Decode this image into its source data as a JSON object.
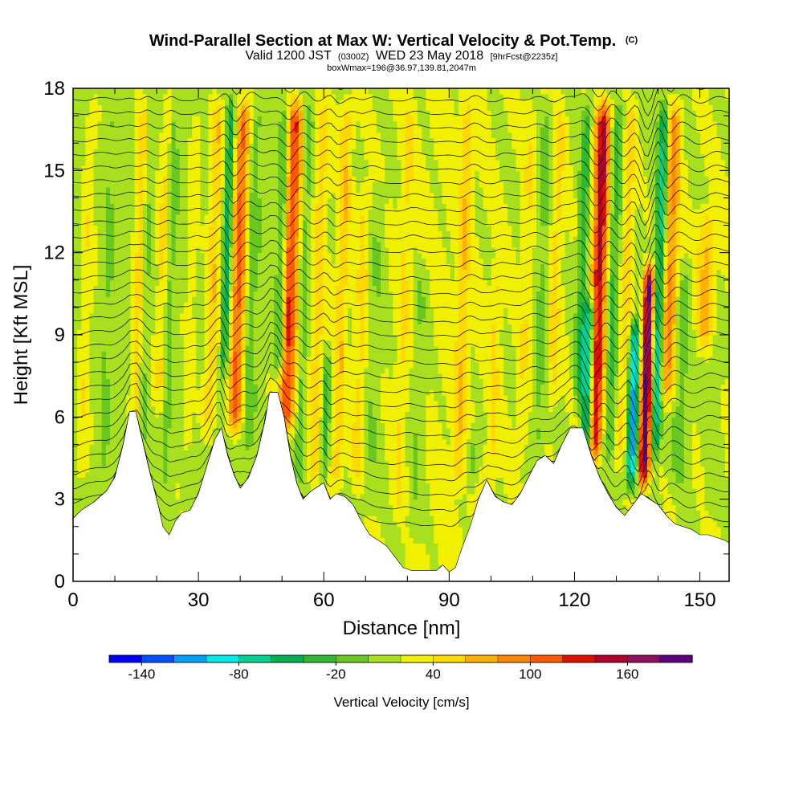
{
  "title": {
    "main": "Wind-Parallel Section at Max W: Vertical Velocity & Pot.Temp.",
    "main_suffix": "(C)",
    "line2_a": "Valid 1200 JST",
    "line2_b": "(0300Z)",
    "line2_c": "WED 23 May 2018",
    "line2_d": "[9hrFcst@2235z]",
    "line3": "boxWmax=196@36.97,139.81,2047m"
  },
  "colors": {
    "terrain": "#ffffff",
    "contour": "#000000",
    "background": "#ffffff"
  },
  "chart_data": {
    "type": "heatmap",
    "xlabel": "Distance [nm]",
    "ylabel": "Height [Kft MSL]",
    "xlim": [
      0,
      157
    ],
    "ylim": [
      0,
      18
    ],
    "xticks": [
      0,
      30,
      60,
      90,
      120,
      150
    ],
    "xtick_labels": [
      "0",
      "30",
      "60",
      "90",
      "120",
      "150"
    ],
    "yticks": [
      0,
      3,
      6,
      9,
      12,
      15,
      18
    ],
    "ytick_labels": [
      "0",
      "3",
      "6",
      "9",
      "12",
      "15",
      "18"
    ],
    "colorbar": {
      "label": "Vertical Velocity [cm/s]",
      "tick_values": [
        -140,
        -80,
        -20,
        40,
        100,
        160
      ],
      "tick_labels": [
        "-140",
        "-80",
        "-20",
        "40",
        "100",
        "160"
      ],
      "levels": [
        -140,
        -120,
        -100,
        -80,
        -60,
        -40,
        -20,
        0,
        20,
        40,
        60,
        80,
        100,
        120,
        140,
        160,
        180
      ],
      "colors": [
        "#0000ff",
        "#0050ff",
        "#00a0ff",
        "#00e8e8",
        "#00d090",
        "#00b050",
        "#30b830",
        "#68c820",
        "#a8e020",
        "#f0f000",
        "#ffd800",
        "#ffb000",
        "#ff8800",
        "#ff5800",
        "#e01000",
        "#b00030",
        "#901060",
        "#600080"
      ]
    },
    "terrain_kft": [
      [
        0,
        2.3
      ],
      [
        2,
        2.6
      ],
      [
        5,
        2.9
      ],
      [
        8,
        3.3
      ],
      [
        10,
        3.8
      ],
      [
        12,
        5.0
      ],
      [
        13.5,
        6.2
      ],
      [
        15,
        6.2
      ],
      [
        16.5,
        5.2
      ],
      [
        18,
        4.2
      ],
      [
        19.5,
        3.3
      ],
      [
        20.5,
        2.7
      ],
      [
        21.5,
        2.0
      ],
      [
        23,
        1.7
      ],
      [
        24.5,
        2.2
      ],
      [
        26,
        2.5
      ],
      [
        28,
        2.6
      ],
      [
        30,
        3.2
      ],
      [
        32,
        4.2
      ],
      [
        34,
        5.2
      ],
      [
        35.5,
        5.6
      ],
      [
        37,
        4.6
      ],
      [
        38.5,
        3.9
      ],
      [
        40,
        3.4
      ],
      [
        42,
        3.8
      ],
      [
        44,
        4.6
      ],
      [
        46,
        5.9
      ],
      [
        47,
        6.9
      ],
      [
        49,
        6.9
      ],
      [
        50.5,
        6.0
      ],
      [
        52,
        4.6
      ],
      [
        53.5,
        3.6
      ],
      [
        55,
        3.0
      ],
      [
        57,
        3.3
      ],
      [
        60,
        3.6
      ],
      [
        61.5,
        3.0
      ],
      [
        63,
        3.2
      ],
      [
        65,
        3.1
      ],
      [
        67,
        2.8
      ],
      [
        69,
        2.2
      ],
      [
        71,
        1.7
      ],
      [
        73,
        1.5
      ],
      [
        75,
        1.3
      ],
      [
        77,
        0.9
      ],
      [
        79,
        0.5
      ],
      [
        81,
        0.4
      ],
      [
        84,
        0.4
      ],
      [
        87,
        0.4
      ],
      [
        88.5,
        0.6
      ],
      [
        90,
        0.35
      ],
      [
        91.5,
        0.5
      ],
      [
        93,
        1.2
      ],
      [
        95,
        2.0
      ],
      [
        97,
        3.0
      ],
      [
        99,
        3.7
      ],
      [
        101,
        3.1
      ],
      [
        103,
        2.9
      ],
      [
        105,
        2.8
      ],
      [
        107,
        3.2
      ],
      [
        109,
        3.8
      ],
      [
        111,
        4.4
      ],
      [
        113,
        4.6
      ],
      [
        115,
        4.3
      ],
      [
        117,
        5.0
      ],
      [
        119,
        5.6
      ],
      [
        122,
        5.6
      ],
      [
        124,
        4.6
      ],
      [
        126,
        3.8
      ],
      [
        128,
        3.2
      ],
      [
        130,
        2.7
      ],
      [
        132,
        2.4
      ],
      [
        134,
        2.8
      ],
      [
        136,
        3.2
      ],
      [
        138,
        3.0
      ],
      [
        140,
        2.8
      ],
      [
        142,
        2.4
      ],
      [
        144,
        2.1
      ],
      [
        146,
        2.0
      ],
      [
        148,
        1.9
      ],
      [
        150,
        1.7
      ],
      [
        152,
        1.7
      ],
      [
        154,
        1.6
      ],
      [
        156,
        1.5
      ],
      [
        157,
        1.4
      ]
    ],
    "vertical_velocity_features": [
      {
        "x": 3,
        "width": 1.5,
        "w": 25,
        "z_lo": 3,
        "z_hi": 18
      },
      {
        "x": 8,
        "width": 1.2,
        "w": -15,
        "z_lo": 3,
        "z_hi": 18
      },
      {
        "x": 15.5,
        "width": 1.3,
        "w": 35,
        "z_lo": 4,
        "z_hi": 18
      },
      {
        "x": 17,
        "width": 1.0,
        "w": -22,
        "z_lo": 4,
        "z_hi": 18
      },
      {
        "x": 21,
        "width": 1.2,
        "w": 30,
        "z_lo": 6,
        "z_hi": 18
      },
      {
        "x": 23,
        "width": 1.2,
        "w": -25,
        "z_lo": 3,
        "z_hi": 18
      },
      {
        "x": 28,
        "width": 1.0,
        "w": 20,
        "z_lo": 4,
        "z_hi": 18
      },
      {
        "x": 33.2,
        "width": 1.5,
        "w": 45,
        "z_lo": 5,
        "z_hi": 18
      },
      {
        "x": 36.3,
        "width": 1.0,
        "w": -70,
        "z_lo": 7,
        "z_hi": 18
      },
      {
        "x": 39.3,
        "width": 1.7,
        "w": 95,
        "z_lo": 5,
        "z_hi": 18
      },
      {
        "x": 42.5,
        "width": 1.5,
        "w": -25,
        "z_lo": 4,
        "z_hi": 18
      },
      {
        "x": 49.5,
        "width": 1.3,
        "w": -60,
        "z_lo": 7,
        "z_hi": 18
      },
      {
        "x": 51.5,
        "width": 2.0,
        "w": 110,
        "z_lo": 5,
        "z_hi": 18
      },
      {
        "x": 55.0,
        "width": 1.2,
        "w": -30,
        "z_lo": 3,
        "z_hi": 18
      },
      {
        "x": 58.5,
        "width": 1.5,
        "w": 35,
        "z_lo": 3,
        "z_hi": 18
      },
      {
        "x": 61,
        "width": 1.0,
        "w": -45,
        "z_lo": 3,
        "z_hi": 9
      },
      {
        "x": 64,
        "width": 1.5,
        "w": 40,
        "z_lo": 3,
        "z_hi": 18
      },
      {
        "x": 69,
        "width": 1.5,
        "w": 30,
        "z_lo": 3,
        "z_hi": 15
      },
      {
        "x": 72,
        "width": 2.0,
        "w": -18,
        "z_lo": 2,
        "z_hi": 15
      },
      {
        "x": 79,
        "width": 1.5,
        "w": 22,
        "z_lo": 2,
        "z_hi": 18
      },
      {
        "x": 83,
        "width": 2.0,
        "w": -20,
        "z_lo": 1,
        "z_hi": 12
      },
      {
        "x": 93,
        "width": 1.3,
        "w": 35,
        "z_lo": 3,
        "z_hi": 18
      },
      {
        "x": 96.5,
        "width": 1.3,
        "w": -35,
        "z_lo": 3,
        "z_hi": 6
      },
      {
        "x": 101,
        "width": 1.2,
        "w": 25,
        "z_lo": 3,
        "z_hi": 12
      },
      {
        "x": 108,
        "width": 1.2,
        "w": 20,
        "z_lo": 4,
        "z_hi": 18
      },
      {
        "x": 112,
        "width": 1.5,
        "w": -25,
        "z_lo": 4,
        "z_hi": 18
      },
      {
        "x": 115,
        "width": 1.5,
        "w": 30,
        "z_lo": 6,
        "z_hi": 18
      },
      {
        "x": 121.5,
        "width": 1.2,
        "w": -50,
        "z_lo": 6,
        "z_hi": 18
      },
      {
        "x": 123.5,
        "width": 1.4,
        "w": -110,
        "z_lo": 4,
        "z_hi": 11
      },
      {
        "x": 125.5,
        "width": 1.8,
        "w": 130,
        "z_lo": 4,
        "z_hi": 18
      },
      {
        "x": 129,
        "width": 1.5,
        "w": -45,
        "z_lo": 4,
        "z_hi": 18
      },
      {
        "x": 132,
        "width": 1.5,
        "w": 35,
        "z_lo": 4,
        "z_hi": 18
      },
      {
        "x": 134.5,
        "width": 1.3,
        "w": -120,
        "z_lo": 3,
        "z_hi": 10
      },
      {
        "x": 137.5,
        "width": 1.3,
        "w": 175,
        "z_lo": 3,
        "z_hi": 12
      },
      {
        "x": 140,
        "width": 1.2,
        "w": -90,
        "z_lo": 4,
        "z_hi": 18
      },
      {
        "x": 142.5,
        "width": 1.8,
        "w": 70,
        "z_lo": 6,
        "z_hi": 18
      },
      {
        "x": 146,
        "width": 2.0,
        "w": -25,
        "z_lo": 3,
        "z_hi": 12
      },
      {
        "x": 151,
        "width": 2.0,
        "w": 45,
        "z_lo": 8,
        "z_hi": 14
      },
      {
        "x": 154,
        "width": 2.0,
        "w": -15,
        "z_lo": 2,
        "z_hi": 10
      }
    ],
    "background_w": [
      [
        0,
        10
      ],
      [
        20,
        15
      ],
      [
        40,
        12
      ],
      [
        60,
        18
      ],
      [
        75,
        20
      ],
      [
        90,
        25
      ],
      [
        105,
        20
      ],
      [
        120,
        18
      ],
      [
        140,
        15
      ],
      [
        157,
        22
      ]
    ],
    "theta_contours": {
      "interval_c": 1,
      "start_c": 20,
      "count": 33
    }
  }
}
